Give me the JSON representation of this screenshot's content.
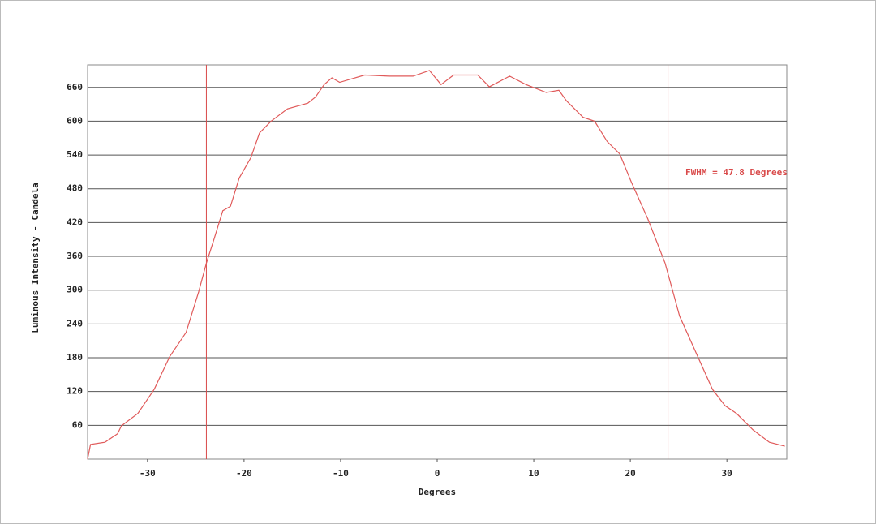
{
  "chart_data": {
    "type": "line",
    "x_label": "Degrees",
    "y_label": "Luminous Intensity - Candela",
    "annotation": "FWHM = 47.8 Degrees",
    "x": [
      -36.2,
      -35.9,
      -34.4,
      -33.1,
      -32.7,
      -31.0,
      -29.3,
      -27.7,
      -26.0,
      -24.7,
      -23.9,
      -23.1,
      -22.2,
      -21.4,
      -20.5,
      -19.3,
      -18.4,
      -17.2,
      -15.5,
      -13.4,
      -12.6,
      -11.7,
      -10.9,
      -10.1,
      -7.5,
      -5.0,
      -2.5,
      -0.8,
      0.4,
      1.7,
      4.2,
      5.4,
      7.5,
      9.2,
      11.3,
      12.6,
      13.4,
      15.1,
      16.3,
      17.6,
      18.9,
      20.1,
      21.8,
      23.6,
      25.1,
      26.8,
      28.5,
      29.8,
      31.0,
      32.7,
      34.4,
      36.0
    ],
    "series": [
      {
        "color": "#e05a5a",
        "values": [
          0,
          26,
          30,
          45,
          59,
          81,
          124,
          182,
          225,
          297,
          348,
          391,
          441,
          449,
          499,
          535,
          579,
          600,
          622,
          632,
          643,
          665,
          677,
          669,
          682,
          680,
          680,
          690,
          665,
          682,
          682,
          661,
          680,
          665,
          651,
          655,
          636,
          607,
          600,
          564,
          542,
          492,
          427,
          348,
          254,
          189,
          124,
          95,
          81,
          52,
          30,
          23
        ]
      }
    ],
    "vlines": [
      -23.9,
      23.9
    ],
    "vline_color": "#d94a4a",
    "xlim": [
      -36.2,
      36.2
    ],
    "xticks": [
      -30,
      -20,
      -10,
      0,
      10,
      20,
      30
    ],
    "ylim": [
      0,
      700
    ],
    "yticks": [
      60,
      120,
      180,
      240,
      300,
      360,
      420,
      480,
      540,
      600,
      660
    ],
    "grid": true
  }
}
